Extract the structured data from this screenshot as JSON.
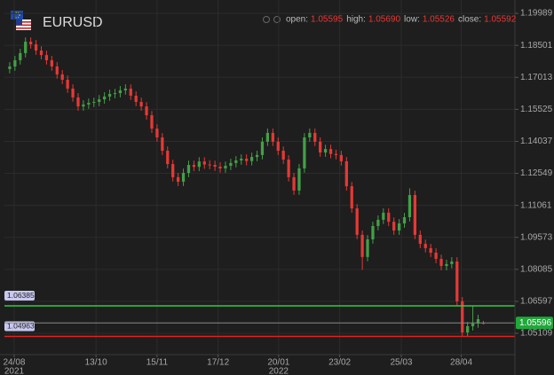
{
  "chart_data": {
    "type": "candlestick",
    "symbol": "EURUSD",
    "readout": [
      {
        "label": "open:",
        "value": "1.05595"
      },
      {
        "label": "high:",
        "value": "1.05690"
      },
      {
        "label": "low:",
        "value": "1.05526"
      },
      {
        "label": "close:",
        "value": "1.05592"
      }
    ],
    "x": [
      0,
      1,
      2,
      3,
      4,
      5,
      6,
      7,
      8,
      9,
      10,
      11,
      12,
      13,
      14,
      15,
      16,
      17,
      18,
      19,
      20,
      21,
      22,
      23,
      24,
      25,
      26,
      27,
      28,
      29,
      30,
      31,
      32,
      33,
      34,
      35,
      36,
      37,
      38,
      39,
      40,
      41,
      42,
      43,
      44,
      45,
      46,
      47,
      48,
      49,
      50,
      51,
      52,
      53,
      54,
      55,
      56,
      57,
      58,
      59,
      60,
      61,
      62,
      63,
      64,
      65,
      66,
      67,
      68,
      69,
      70,
      71,
      72,
      73,
      74,
      75,
      76,
      77,
      78,
      79,
      80,
      81,
      82,
      83,
      84,
      85,
      86,
      87,
      88,
      89,
      90
    ],
    "open": [
      1.174,
      1.1752,
      1.1781,
      1.1814,
      1.1867,
      1.1855,
      1.1826,
      1.1805,
      1.1781,
      1.1752,
      1.1715,
      1.169,
      1.1649,
      1.1608,
      1.1566,
      1.1575,
      1.1583,
      1.1587,
      1.1599,
      1.1612,
      1.1624,
      1.1628,
      1.1641,
      1.1649,
      1.1616,
      1.1587,
      1.1566,
      1.1525,
      1.1463,
      1.1422,
      1.136,
      1.1298,
      1.1237,
      1.1216,
      1.1257,
      1.1294,
      1.1285,
      1.131,
      1.1296,
      1.1294,
      1.1286,
      1.1278,
      1.129,
      1.1303,
      1.1315,
      1.1323,
      1.1312,
      1.1331,
      1.134,
      1.1402,
      1.1443,
      1.1402,
      1.136,
      1.1319,
      1.1237,
      1.1175,
      1.1278,
      1.1422,
      1.1443,
      1.1402,
      1.1352,
      1.1368,
      1.1345,
      1.134,
      1.1311,
      1.1195,
      1.1092,
      1.0969,
      1.0866,
      1.0948,
      1.101,
      1.1039,
      1.1072,
      1.103,
      1.0989,
      1.1022,
      1.1051,
      1.1154,
      1.0969,
      1.0927,
      1.0907,
      1.0886,
      1.0857,
      1.0824,
      1.0833,
      1.0845,
      1.066,
      1.0515,
      1.0544,
      1.0557,
      1.05595
    ],
    "high": [
      1.1772,
      1.1801,
      1.1834,
      1.1887,
      1.1887,
      1.1875,
      1.1846,
      1.1825,
      1.1801,
      1.1772,
      1.1735,
      1.171,
      1.1669,
      1.1628,
      1.1595,
      1.1603,
      1.1607,
      1.1619,
      1.1632,
      1.1644,
      1.1648,
      1.1661,
      1.1669,
      1.1669,
      1.1636,
      1.1607,
      1.1586,
      1.1545,
      1.1483,
      1.1442,
      1.138,
      1.1318,
      1.1257,
      1.1277,
      1.1314,
      1.1314,
      1.133,
      1.133,
      1.1316,
      1.1314,
      1.1306,
      1.131,
      1.1323,
      1.1335,
      1.1343,
      1.1343,
      1.1351,
      1.136,
      1.1422,
      1.1463,
      1.1463,
      1.1422,
      1.138,
      1.1339,
      1.1257,
      1.1298,
      1.1442,
      1.1463,
      1.1463,
      1.1422,
      1.1388,
      1.1388,
      1.1365,
      1.136,
      1.1331,
      1.1215,
      1.1112,
      1.0989,
      1.0968,
      1.103,
      1.1059,
      1.1092,
      1.1092,
      1.105,
      1.1042,
      1.1071,
      1.1185,
      1.1174,
      1.0989,
      1.0947,
      1.0927,
      1.0906,
      1.0877,
      1.0853,
      1.0865,
      1.0865,
      1.068,
      1.0564,
      1.064,
      1.0597,
      1.0569
    ],
    "low": [
      1.172,
      1.1732,
      1.1761,
      1.1794,
      1.1835,
      1.1806,
      1.1785,
      1.1761,
      1.1732,
      1.1695,
      1.167,
      1.1629,
      1.1588,
      1.1546,
      1.1546,
      1.1555,
      1.1563,
      1.1567,
      1.1579,
      1.1592,
      1.1604,
      1.1608,
      1.1621,
      1.1596,
      1.1567,
      1.1546,
      1.1505,
      1.1443,
      1.1402,
      1.134,
      1.1278,
      1.1217,
      1.1196,
      1.1196,
      1.1237,
      1.1265,
      1.1265,
      1.1276,
      1.1274,
      1.1266,
      1.1258,
      1.1258,
      1.127,
      1.1283,
      1.1295,
      1.1292,
      1.1292,
      1.1311,
      1.132,
      1.1382,
      1.1382,
      1.134,
      1.1299,
      1.1217,
      1.1155,
      1.1155,
      1.1258,
      1.1402,
      1.1382,
      1.1332,
      1.1332,
      1.1325,
      1.132,
      1.1291,
      1.1175,
      1.1072,
      1.0949,
      1.0806,
      1.0846,
      1.0928,
      1.099,
      1.1019,
      1.101,
      1.0969,
      1.0969,
      1.1002,
      1.1031,
      1.0949,
      1.0907,
      1.0887,
      1.0866,
      1.0837,
      1.0804,
      1.0804,
      1.0813,
      1.064,
      1.0495,
      1.0495,
      1.0524,
      1.0537,
      1.05526
    ],
    "close": [
      1.1752,
      1.1781,
      1.1814,
      1.1867,
      1.1855,
      1.1826,
      1.1805,
      1.1781,
      1.1752,
      1.1715,
      1.169,
      1.1649,
      1.1608,
      1.1566,
      1.1575,
      1.1583,
      1.1587,
      1.1599,
      1.1612,
      1.1624,
      1.1628,
      1.1641,
      1.1649,
      1.1616,
      1.1587,
      1.1566,
      1.1525,
      1.1463,
      1.1422,
      1.136,
      1.1298,
      1.1237,
      1.1216,
      1.1257,
      1.1294,
      1.1285,
      1.131,
      1.1296,
      1.1294,
      1.1286,
      1.1278,
      1.129,
      1.1303,
      1.1315,
      1.1323,
      1.1312,
      1.1331,
      1.134,
      1.1402,
      1.1443,
      1.1402,
      1.136,
      1.1319,
      1.1237,
      1.1175,
      1.1278,
      1.1422,
      1.1443,
      1.1402,
      1.1352,
      1.1368,
      1.1345,
      1.134,
      1.1311,
      1.1195,
      1.1092,
      1.0969,
      1.0866,
      1.0948,
      1.101,
      1.1039,
      1.1072,
      1.103,
      1.0989,
      1.1022,
      1.1051,
      1.1154,
      1.0969,
      1.0927,
      1.0907,
      1.0886,
      1.0857,
      1.0824,
      1.0833,
      1.0845,
      1.066,
      1.0515,
      1.0544,
      1.0557,
      1.0577,
      1.05592
    ],
    "up_color": "#43a047",
    "down_color": "#e53935",
    "xlim": [
      -1,
      96
    ],
    "xticks": [
      {
        "value": 0.85,
        "label": "24/08"
      },
      {
        "value": 16.4,
        "label": "13/10"
      },
      {
        "value": 28,
        "label": "15/11"
      },
      {
        "value": 39.6,
        "label": "17/12"
      },
      {
        "value": 51.1,
        "label": "20/01"
      },
      {
        "value": 62.7,
        "label": "23/02"
      },
      {
        "value": 74.4,
        "label": "25/03"
      },
      {
        "value": 85.8,
        "label": "28/04"
      }
    ],
    "x_year_labels": [
      {
        "value": 0.85,
        "label": "2021"
      },
      {
        "value": 51.1,
        "label": "2022"
      }
    ],
    "ylim": [
      1.0412,
      1.2061
    ],
    "yticks": [
      1.19989,
      1.18501,
      1.17013,
      1.15525,
      1.14037,
      1.12549,
      1.11061,
      1.09573,
      1.08085,
      1.06597,
      1.05109
    ],
    "grid": true,
    "levels": [
      {
        "value": 1.06385,
        "color": "#2ecc40"
      },
      {
        "value": 1.04963,
        "color": "#e02020"
      }
    ],
    "last_price": {
      "value": 1.05596,
      "color": "#1fa83a"
    }
  }
}
